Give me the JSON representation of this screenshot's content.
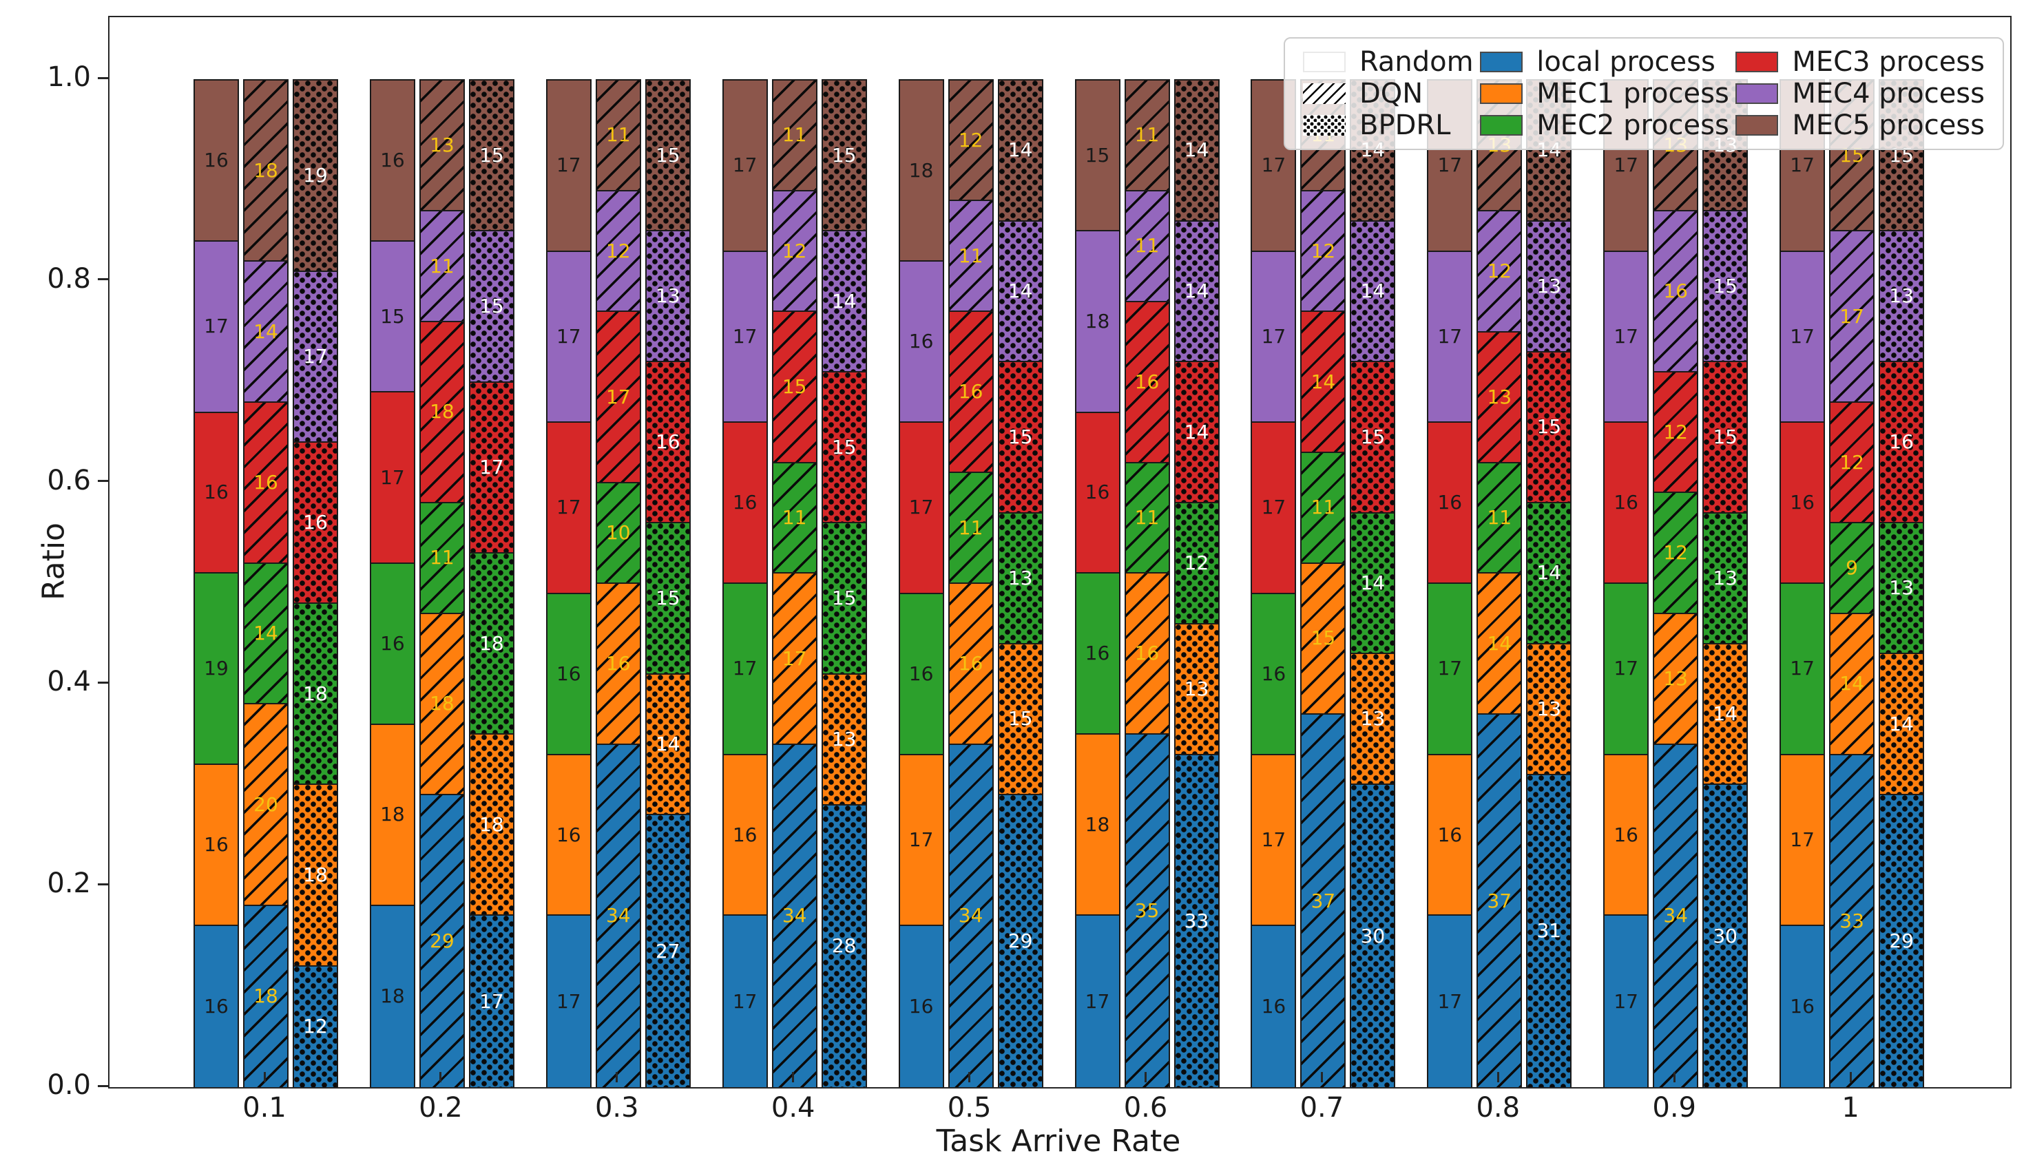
{
  "figure": {
    "xlabel": "Task Arrive Rate",
    "ylabel": "Ratio",
    "background": "#ffffff",
    "yticks": [
      "0.0",
      "0.2",
      "0.4",
      "0.6",
      "0.8",
      "1.0"
    ]
  },
  "legend": {
    "pattern_entries": [
      {
        "label": "Random",
        "pattern": "solid"
      },
      {
        "label": "DQN",
        "pattern": "hatch"
      },
      {
        "label": "BPDRL",
        "pattern": "dots"
      }
    ],
    "color_entries": [
      {
        "label": "local process",
        "color": "#1f77b4"
      },
      {
        "label": "MEC1 process",
        "color": "#ff7f0e"
      },
      {
        "label": "MEC2 process",
        "color": "#2ca02c"
      },
      {
        "label": "MEC3 process",
        "color": "#d62728"
      },
      {
        "label": "MEC4 process",
        "color": "#9467bd"
      },
      {
        "label": "MEC5 process",
        "color": "#8c564b"
      }
    ]
  },
  "chart_data": {
    "type": "bar",
    "stacked": true,
    "grouped": true,
    "title": "",
    "xlabel": "Task Arrive Rate",
    "ylabel": "Ratio",
    "ylim": [
      0,
      1.0
    ],
    "grid": false,
    "legend_position": "upper right",
    "categories": [
      "0.1",
      "0.2",
      "0.3",
      "0.4",
      "0.5",
      "0.6",
      "0.7",
      "0.8",
      "0.9",
      "1"
    ],
    "bar_series": [
      "Random",
      "DQN",
      "BPDRL"
    ],
    "bar_patterns": [
      "solid",
      "hatch",
      "dots"
    ],
    "segments": [
      "local process",
      "MEC1 process",
      "MEC2 process",
      "MEC3 process",
      "MEC4 process",
      "MEC5 process"
    ],
    "segment_colors": [
      "#1f77b4",
      "#ff7f0e",
      "#2ca02c",
      "#d62728",
      "#9467bd",
      "#8c564b"
    ],
    "label_colors": {
      "Random": "#1a1a1a",
      "DQN": "#f5c211",
      "BPDRL": "#ffffff"
    },
    "values_pct": {
      "Random": [
        [
          16,
          16,
          19,
          16,
          17,
          16
        ],
        [
          18,
          18,
          16,
          17,
          15,
          16
        ],
        [
          17,
          16,
          16,
          17,
          17,
          17
        ],
        [
          17,
          16,
          17,
          16,
          17,
          17
        ],
        [
          16,
          17,
          16,
          17,
          16,
          18
        ],
        [
          17,
          18,
          16,
          16,
          18,
          15
        ],
        [
          16,
          17,
          16,
          17,
          17,
          17
        ],
        [
          17,
          16,
          17,
          16,
          17,
          17
        ],
        [
          17,
          16,
          17,
          16,
          17,
          17
        ],
        [
          16,
          17,
          17,
          16,
          17,
          17
        ]
      ],
      "DQN": [
        [
          18,
          20,
          14,
          16,
          14,
          18
        ],
        [
          29,
          18,
          11,
          18,
          11,
          13
        ],
        [
          34,
          16,
          10,
          17,
          12,
          11
        ],
        [
          34,
          17,
          11,
          15,
          12,
          11
        ],
        [
          34,
          16,
          11,
          16,
          11,
          12
        ],
        [
          35,
          16,
          11,
          16,
          11,
          11
        ],
        [
          37,
          15,
          11,
          14,
          12,
          11
        ],
        [
          37,
          14,
          11,
          13,
          12,
          13
        ],
        [
          34,
          13,
          12,
          12,
          16,
          13
        ],
        [
          33,
          14,
          9,
          12,
          17,
          15
        ]
      ],
      "BPDRL": [
        [
          12,
          18,
          18,
          16,
          17,
          19
        ],
        [
          17,
          18,
          18,
          17,
          15,
          15
        ],
        [
          27,
          14,
          15,
          16,
          13,
          15
        ],
        [
          28,
          13,
          15,
          15,
          14,
          15
        ],
        [
          29,
          15,
          13,
          15,
          14,
          14
        ],
        [
          33,
          13,
          12,
          14,
          14,
          14
        ],
        [
          30,
          13,
          14,
          15,
          14,
          14
        ],
        [
          31,
          13,
          14,
          15,
          13,
          14
        ],
        [
          30,
          14,
          13,
          15,
          15,
          13
        ],
        [
          29,
          14,
          13,
          16,
          13,
          15
        ]
      ]
    }
  }
}
